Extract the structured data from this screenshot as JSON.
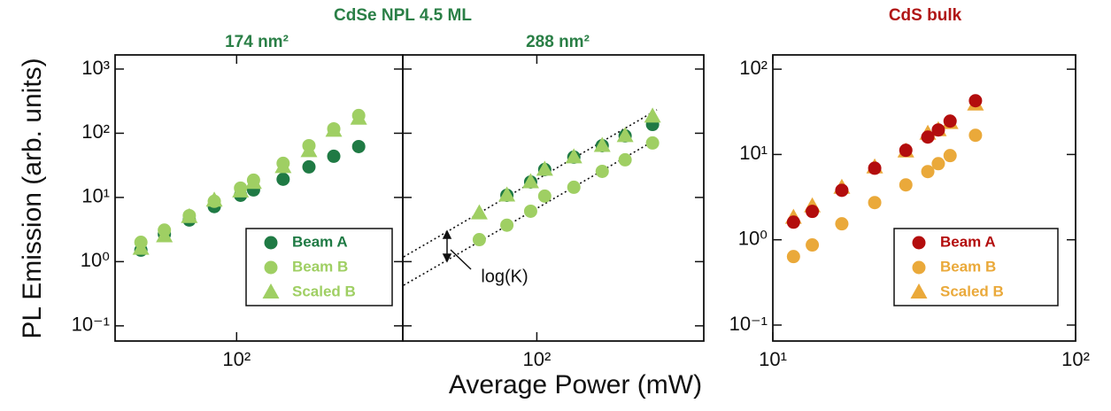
{
  "figure": {
    "group_title": "CdSe NPL 4.5 ML",
    "group_title_color": "#2a7f46",
    "xlabel": "Average Power (mW)",
    "ylabel": "PL Emission (arb. units)"
  },
  "chart_data": [
    {
      "type": "scatter",
      "title": "174 nm²",
      "title_color": "#2a7f46",
      "xscale": "log",
      "yscale": "log",
      "xlim": [
        40,
        350
      ],
      "ylim": [
        0.058,
        1660
      ],
      "xticks": [
        {
          "value": 100,
          "label": "10²"
        }
      ],
      "yticks": [
        {
          "value": 0.1,
          "label": "10⁻¹"
        },
        {
          "value": 1,
          "label": "10⁰"
        },
        {
          "value": 10,
          "label": "10¹"
        },
        {
          "value": 100,
          "label": "10²"
        },
        {
          "value": 1000,
          "label": "10³"
        }
      ],
      "legend": "lower right",
      "series": [
        {
          "name": "Beam A",
          "color": "#1f7a44",
          "marker": "circle",
          "x": [
            48.6,
            58,
            70,
            84.5,
            103,
            113.6,
            142,
            172.5,
            208,
            251
          ],
          "values": [
            1.51,
            2.68,
            4.45,
            7.2,
            10.8,
            13.1,
            19.2,
            29.9,
            43.8,
            62
          ]
        },
        {
          "name": "Beam B",
          "color": "#9fcf63",
          "marker": "circle",
          "x": [
            48.6,
            58,
            70,
            84.5,
            103,
            113.6,
            142,
            172.5,
            208,
            251
          ],
          "values": [
            2.0,
            3.1,
            5.2,
            8.7,
            14,
            18.6,
            34,
            64,
            117,
            189
          ]
        },
        {
          "name": "Scaled B",
          "color": "#9fcf63",
          "marker": "triangle",
          "x": [
            48.6,
            58,
            70,
            84.5,
            103,
            113.6,
            142,
            172.5,
            208,
            251
          ],
          "values": [
            1.6,
            2.5,
            5,
            9,
            12.5,
            17,
            30,
            53,
            110,
            170
          ]
        }
      ]
    },
    {
      "type": "scatter",
      "title": "288 nm²",
      "title_color": "#2a7f46",
      "xscale": "log",
      "yscale": "log",
      "xlim": [
        36,
        357
      ],
      "ylim": [
        0.058,
        1660
      ],
      "xticks": [
        {
          "value": 100,
          "label": "10²"
        }
      ],
      "yticks": [
        0.1,
        1,
        10,
        100,
        1000
      ],
      "ytick_labels": false,
      "annotation": "log(K)",
      "series": [
        {
          "name": "Beam A",
          "color": "#1f7a44",
          "marker": "circle",
          "x": [
            79.6,
            95.4,
            106.2,
            132.6,
            164.6,
            196,
            241.6
          ],
          "values": [
            10.8,
            17.4,
            27.2,
            42.4,
            64,
            91,
            137
          ]
        },
        {
          "name": "Beam B",
          "color": "#9fcf63",
          "marker": "circle",
          "x": [
            64.5,
            79.6,
            95.4,
            106.2,
            132.6,
            164.6,
            196,
            241.6
          ],
          "values": [
            2.2,
            3.7,
            6.1,
            10.5,
            14.4,
            25.5,
            38.6,
            70.5
          ]
        },
        {
          "name": "Scaled B",
          "color": "#9fcf63",
          "marker": "triangle",
          "x": [
            64.5,
            79.6,
            95.4,
            106.2,
            132.6,
            164.6,
            196,
            241.6
          ],
          "values": [
            5.7,
            10.8,
            17.4,
            27.2,
            42.4,
            64,
            91,
            183
          ]
        }
      ]
    },
    {
      "type": "scatter",
      "title": "CdS bulk",
      "title_color": "#b01515",
      "xscale": "log",
      "yscale": "log",
      "xlim": [
        10,
        100
      ],
      "ylim": [
        0.065,
        147
      ],
      "xticks": [
        {
          "value": 10,
          "label": "10¹"
        },
        {
          "value": 100,
          "label": "10²"
        }
      ],
      "yticks": [
        {
          "value": 0.1,
          "label": "10⁻¹"
        },
        {
          "value": 1,
          "label": "10⁰"
        },
        {
          "value": 10,
          "label": "10¹"
        },
        {
          "value": 100,
          "label": "10²"
        }
      ],
      "legend": "lower right",
      "series": [
        {
          "name": "Scaled B",
          "color": "#eaa93a",
          "marker": "triangle",
          "x": [
            11.7,
            13.5,
            16.9,
            21.7,
            27.5,
            32.5,
            35.2,
            38.5,
            46.7
          ],
          "values": [
            1.82,
            2.48,
            4.1,
            7.1,
            10.9,
            17.6,
            19.4,
            23.5,
            38.8
          ]
        },
        {
          "name": "Beam B",
          "color": "#eaa93a",
          "marker": "circle",
          "x": [
            11.7,
            13.5,
            16.9,
            21.7,
            27.5,
            32.5,
            35.2,
            38.5,
            46.7
          ],
          "values": [
            0.635,
            0.87,
            1.54,
            2.73,
            4.4,
            6.3,
            7.8,
            9.7,
            16.8
          ]
        },
        {
          "name": "Beam A",
          "color": "#b30d0d",
          "marker": "circle",
          "x": [
            11.7,
            13.5,
            16.9,
            21.7,
            27.5,
            32.5,
            35.2,
            38.5,
            46.7
          ],
          "values": [
            1.61,
            2.15,
            3.8,
            6.9,
            11.2,
            16,
            19.4,
            24.6,
            42.7
          ]
        }
      ]
    }
  ]
}
